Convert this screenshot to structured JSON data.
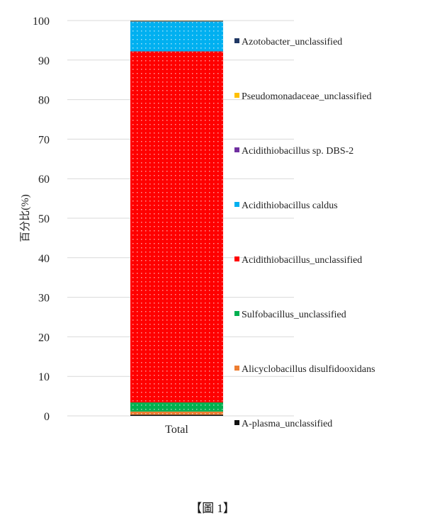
{
  "chart_data": {
    "type": "bar",
    "stacked": true,
    "categories": [
      "Total"
    ],
    "ylabel": "百分比(%)",
    "xlabel": "",
    "ylim": [
      0,
      100
    ],
    "yticks": [
      0,
      10,
      20,
      30,
      40,
      50,
      60,
      70,
      80,
      90,
      100
    ],
    "grid": true,
    "legend_placement": "right",
    "series": [
      {
        "name": "A-plasma_unclassified",
        "values": [
          0.3
        ],
        "color": "#111111"
      },
      {
        "name": "Alicyclobacillus disulfidooxidans",
        "values": [
          0.8
        ],
        "color": "#ED7D31"
      },
      {
        "name": "Sulfobacillus_unclassified",
        "values": [
          2.3
        ],
        "color": "#00B050"
      },
      {
        "name": "Acidithiobacillus_unclassified",
        "values": [
          88.8
        ],
        "color": "#FF0000"
      },
      {
        "name": "Acidithiobacillus caldus",
        "values": [
          7.6
        ],
        "color": "#00B0F0"
      },
      {
        "name": "Acidithiobacillus sp. DBS-2",
        "values": [
          0.05
        ],
        "color": "#7030A0"
      },
      {
        "name": "Pseudomonadaceae_unclassified",
        "values": [
          0.05
        ],
        "color": "#FFC000"
      },
      {
        "name": "Azotobacter_unclassified",
        "values": [
          0.1
        ],
        "color": "#203864"
      }
    ]
  },
  "caption": "【圖 1】"
}
